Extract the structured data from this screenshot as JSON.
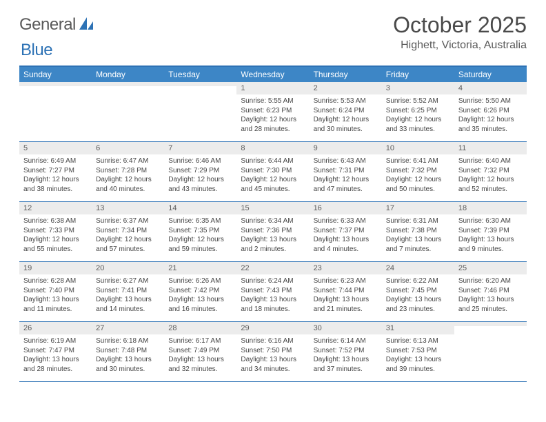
{
  "logo": {
    "word1": "General",
    "word2": "Blue"
  },
  "title": "October 2025",
  "location": "Highett, Victoria, Australia",
  "colors": {
    "header_bg": "#3d86c6",
    "border": "#2d72b5",
    "daynum_bg": "#ececec",
    "text": "#444444",
    "title_text": "#4a4a4a"
  },
  "day_names": [
    "Sunday",
    "Monday",
    "Tuesday",
    "Wednesday",
    "Thursday",
    "Friday",
    "Saturday"
  ],
  "weeks": [
    [
      {
        "day": "",
        "sunrise": "",
        "sunset": "",
        "daylight1": "",
        "daylight2": ""
      },
      {
        "day": "",
        "sunrise": "",
        "sunset": "",
        "daylight1": "",
        "daylight2": ""
      },
      {
        "day": "",
        "sunrise": "",
        "sunset": "",
        "daylight1": "",
        "daylight2": ""
      },
      {
        "day": "1",
        "sunrise": "Sunrise: 5:55 AM",
        "sunset": "Sunset: 6:23 PM",
        "daylight1": "Daylight: 12 hours",
        "daylight2": "and 28 minutes."
      },
      {
        "day": "2",
        "sunrise": "Sunrise: 5:53 AM",
        "sunset": "Sunset: 6:24 PM",
        "daylight1": "Daylight: 12 hours",
        "daylight2": "and 30 minutes."
      },
      {
        "day": "3",
        "sunrise": "Sunrise: 5:52 AM",
        "sunset": "Sunset: 6:25 PM",
        "daylight1": "Daylight: 12 hours",
        "daylight2": "and 33 minutes."
      },
      {
        "day": "4",
        "sunrise": "Sunrise: 5:50 AM",
        "sunset": "Sunset: 6:26 PM",
        "daylight1": "Daylight: 12 hours",
        "daylight2": "and 35 minutes."
      }
    ],
    [
      {
        "day": "5",
        "sunrise": "Sunrise: 6:49 AM",
        "sunset": "Sunset: 7:27 PM",
        "daylight1": "Daylight: 12 hours",
        "daylight2": "and 38 minutes."
      },
      {
        "day": "6",
        "sunrise": "Sunrise: 6:47 AM",
        "sunset": "Sunset: 7:28 PM",
        "daylight1": "Daylight: 12 hours",
        "daylight2": "and 40 minutes."
      },
      {
        "day": "7",
        "sunrise": "Sunrise: 6:46 AM",
        "sunset": "Sunset: 7:29 PM",
        "daylight1": "Daylight: 12 hours",
        "daylight2": "and 43 minutes."
      },
      {
        "day": "8",
        "sunrise": "Sunrise: 6:44 AM",
        "sunset": "Sunset: 7:30 PM",
        "daylight1": "Daylight: 12 hours",
        "daylight2": "and 45 minutes."
      },
      {
        "day": "9",
        "sunrise": "Sunrise: 6:43 AM",
        "sunset": "Sunset: 7:31 PM",
        "daylight1": "Daylight: 12 hours",
        "daylight2": "and 47 minutes."
      },
      {
        "day": "10",
        "sunrise": "Sunrise: 6:41 AM",
        "sunset": "Sunset: 7:32 PM",
        "daylight1": "Daylight: 12 hours",
        "daylight2": "and 50 minutes."
      },
      {
        "day": "11",
        "sunrise": "Sunrise: 6:40 AM",
        "sunset": "Sunset: 7:32 PM",
        "daylight1": "Daylight: 12 hours",
        "daylight2": "and 52 minutes."
      }
    ],
    [
      {
        "day": "12",
        "sunrise": "Sunrise: 6:38 AM",
        "sunset": "Sunset: 7:33 PM",
        "daylight1": "Daylight: 12 hours",
        "daylight2": "and 55 minutes."
      },
      {
        "day": "13",
        "sunrise": "Sunrise: 6:37 AM",
        "sunset": "Sunset: 7:34 PM",
        "daylight1": "Daylight: 12 hours",
        "daylight2": "and 57 minutes."
      },
      {
        "day": "14",
        "sunrise": "Sunrise: 6:35 AM",
        "sunset": "Sunset: 7:35 PM",
        "daylight1": "Daylight: 12 hours",
        "daylight2": "and 59 minutes."
      },
      {
        "day": "15",
        "sunrise": "Sunrise: 6:34 AM",
        "sunset": "Sunset: 7:36 PM",
        "daylight1": "Daylight: 13 hours",
        "daylight2": "and 2 minutes."
      },
      {
        "day": "16",
        "sunrise": "Sunrise: 6:33 AM",
        "sunset": "Sunset: 7:37 PM",
        "daylight1": "Daylight: 13 hours",
        "daylight2": "and 4 minutes."
      },
      {
        "day": "17",
        "sunrise": "Sunrise: 6:31 AM",
        "sunset": "Sunset: 7:38 PM",
        "daylight1": "Daylight: 13 hours",
        "daylight2": "and 7 minutes."
      },
      {
        "day": "18",
        "sunrise": "Sunrise: 6:30 AM",
        "sunset": "Sunset: 7:39 PM",
        "daylight1": "Daylight: 13 hours",
        "daylight2": "and 9 minutes."
      }
    ],
    [
      {
        "day": "19",
        "sunrise": "Sunrise: 6:28 AM",
        "sunset": "Sunset: 7:40 PM",
        "daylight1": "Daylight: 13 hours",
        "daylight2": "and 11 minutes."
      },
      {
        "day": "20",
        "sunrise": "Sunrise: 6:27 AM",
        "sunset": "Sunset: 7:41 PM",
        "daylight1": "Daylight: 13 hours",
        "daylight2": "and 14 minutes."
      },
      {
        "day": "21",
        "sunrise": "Sunrise: 6:26 AM",
        "sunset": "Sunset: 7:42 PM",
        "daylight1": "Daylight: 13 hours",
        "daylight2": "and 16 minutes."
      },
      {
        "day": "22",
        "sunrise": "Sunrise: 6:24 AM",
        "sunset": "Sunset: 7:43 PM",
        "daylight1": "Daylight: 13 hours",
        "daylight2": "and 18 minutes."
      },
      {
        "day": "23",
        "sunrise": "Sunrise: 6:23 AM",
        "sunset": "Sunset: 7:44 PM",
        "daylight1": "Daylight: 13 hours",
        "daylight2": "and 21 minutes."
      },
      {
        "day": "24",
        "sunrise": "Sunrise: 6:22 AM",
        "sunset": "Sunset: 7:45 PM",
        "daylight1": "Daylight: 13 hours",
        "daylight2": "and 23 minutes."
      },
      {
        "day": "25",
        "sunrise": "Sunrise: 6:20 AM",
        "sunset": "Sunset: 7:46 PM",
        "daylight1": "Daylight: 13 hours",
        "daylight2": "and 25 minutes."
      }
    ],
    [
      {
        "day": "26",
        "sunrise": "Sunrise: 6:19 AM",
        "sunset": "Sunset: 7:47 PM",
        "daylight1": "Daylight: 13 hours",
        "daylight2": "and 28 minutes."
      },
      {
        "day": "27",
        "sunrise": "Sunrise: 6:18 AM",
        "sunset": "Sunset: 7:48 PM",
        "daylight1": "Daylight: 13 hours",
        "daylight2": "and 30 minutes."
      },
      {
        "day": "28",
        "sunrise": "Sunrise: 6:17 AM",
        "sunset": "Sunset: 7:49 PM",
        "daylight1": "Daylight: 13 hours",
        "daylight2": "and 32 minutes."
      },
      {
        "day": "29",
        "sunrise": "Sunrise: 6:16 AM",
        "sunset": "Sunset: 7:50 PM",
        "daylight1": "Daylight: 13 hours",
        "daylight2": "and 34 minutes."
      },
      {
        "day": "30",
        "sunrise": "Sunrise: 6:14 AM",
        "sunset": "Sunset: 7:52 PM",
        "daylight1": "Daylight: 13 hours",
        "daylight2": "and 37 minutes."
      },
      {
        "day": "31",
        "sunrise": "Sunrise: 6:13 AM",
        "sunset": "Sunset: 7:53 PM",
        "daylight1": "Daylight: 13 hours",
        "daylight2": "and 39 minutes."
      },
      {
        "day": "",
        "sunrise": "",
        "sunset": "",
        "daylight1": "",
        "daylight2": ""
      }
    ]
  ]
}
